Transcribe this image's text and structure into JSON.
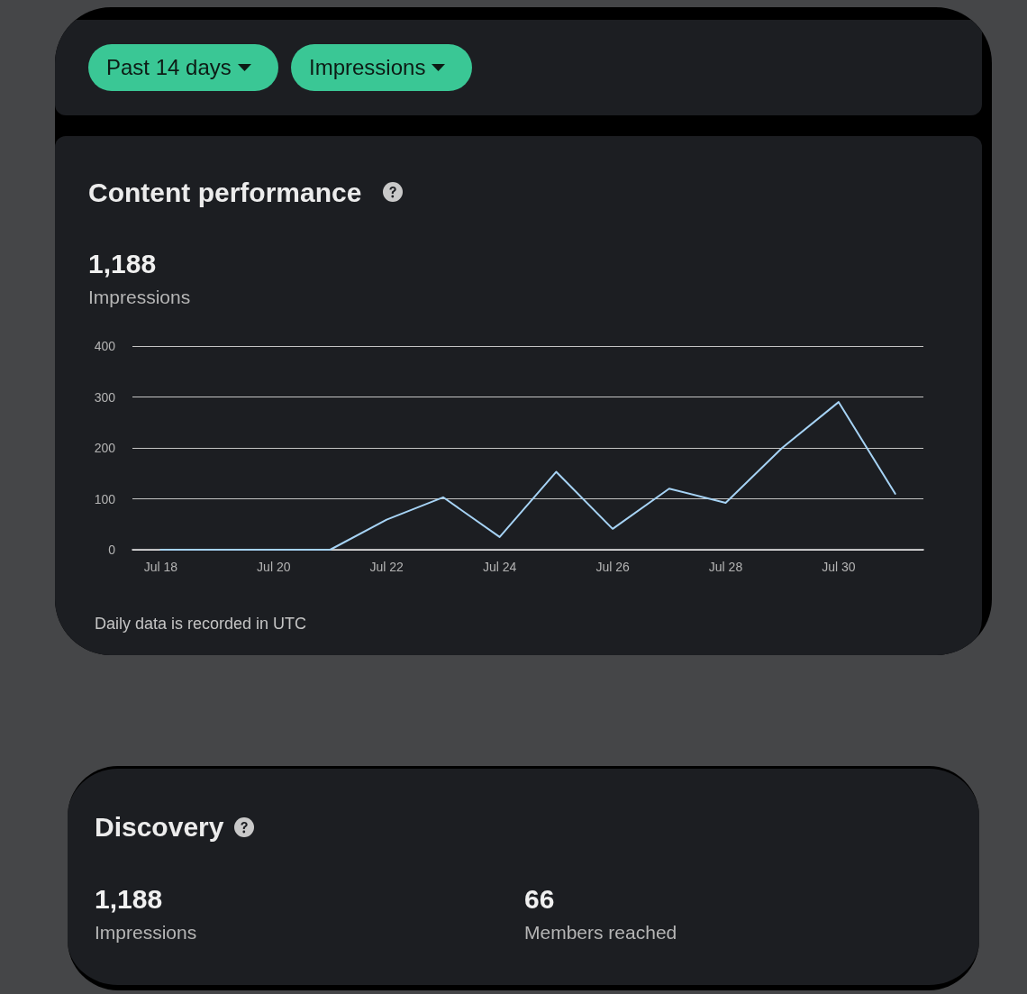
{
  "chart_data": [
    {
      "type": "line",
      "title": "Content performance",
      "annotations": [
        "Past 14 days",
        "Impressions",
        "1,188",
        "Impressions",
        "Daily data is recorded in UTC"
      ],
      "categories": [
        "Jul 18",
        null,
        "Jul 20",
        null,
        "Jul 22",
        null,
        "Jul 24",
        null,
        "Jul 26",
        null,
        "Jul 28",
        null,
        "Jul 30",
        null
      ],
      "values": [
        0,
        0,
        0,
        0,
        59,
        103,
        25,
        153,
        41,
        120,
        92,
        200,
        290,
        110
      ],
      "color": "#a6d3f5",
      "ylim": [
        0,
        400
      ],
      "yticks": [
        0,
        100,
        200,
        300,
        400
      ],
      "grid": "y",
      "line_style": "solid"
    },
    {
      "type": "other",
      "title": "Discovery",
      "annotations": [
        "1,188",
        "Impressions",
        "66",
        "Members reached"
      ]
    }
  ]
}
